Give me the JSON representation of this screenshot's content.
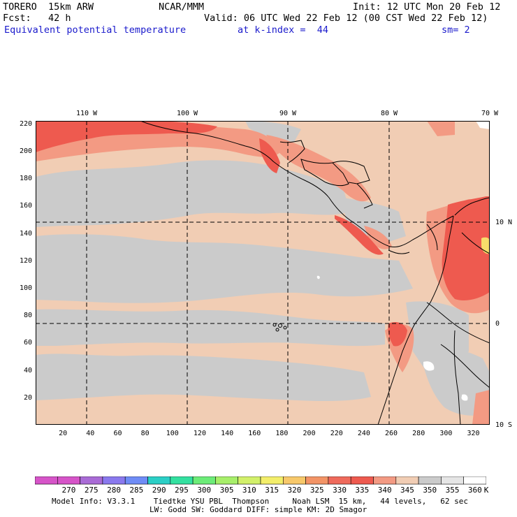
{
  "header": {
    "model": "TORERO  15km ARW",
    "org": "NCAR/MMM",
    "init": "Init: 12 UTC Mon 20 Feb 12",
    "fcst": "Fcst:   42 h",
    "valid": "Valid: 06 UTC Wed 22 Feb 12 (00 CST Wed 22 Feb 12)",
    "field": "Equivalent potential temperature",
    "level": "at k-index =  44",
    "smoothing": "sm= 2"
  },
  "map": {
    "top_labels": [
      "110 W",
      "100 W",
      "90 W",
      "80 W",
      "70 W"
    ],
    "right_labels": [
      "10 N",
      "0",
      "10 S"
    ],
    "x_ticks": [
      "20",
      "40",
      "60",
      "80",
      "100",
      "120",
      "140",
      "160",
      "180",
      "200",
      "220",
      "240",
      "260",
      "280",
      "300",
      "320"
    ],
    "y_ticks": [
      "220",
      "200",
      "180",
      "160",
      "140",
      "120",
      "100",
      "80",
      "60",
      "40",
      "20"
    ],
    "colors": {
      "bg": "#f1cdb4",
      "gray": "#cbcbcb",
      "light_red": "#f39a83",
      "red": "#ee5a4f",
      "yellow": "#f7dd6b",
      "white": "#ffffff",
      "grid": "#000000"
    }
  },
  "legend": {
    "labels": [
      "270",
      "275",
      "280",
      "285",
      "290",
      "295",
      "300",
      "305",
      "310",
      "315",
      "320",
      "325",
      "330",
      "335",
      "340",
      "345",
      "350",
      "355",
      "360"
    ],
    "unit": "K",
    "colors": [
      "#d654c8",
      "#a96bd6",
      "#8a79ee",
      "#6f8cf6",
      "#2bcfc6",
      "#33e0a0",
      "#6cec78",
      "#a7ef6a",
      "#d2f06a",
      "#f3ee6a",
      "#f7c86a",
      "#f39466",
      "#ef6a5c",
      "#ee5a4f",
      "#f39a83",
      "#f1cdb4",
      "#cbcbcb",
      "#e5e5e5",
      "#ffffff"
    ]
  },
  "footer": {
    "line1": "Model Info: V3.3.1    Tiedtke YSU PBL  Thompson     Noah LSM  15 km,   44 levels,   62 sec",
    "line2": "LW: Godd SW: Goddard DIFF: simple KM: 2D Smagor"
  }
}
